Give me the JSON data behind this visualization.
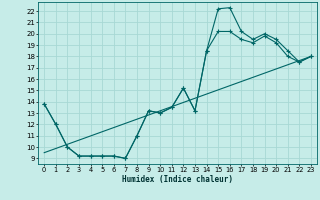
{
  "xlabel": "Humidex (Indice chaleur)",
  "background_color": "#c6ece8",
  "grid_color": "#a8d8d4",
  "line_color": "#006666",
  "xlim": [
    -0.5,
    23.5
  ],
  "ylim": [
    8.5,
    22.8
  ],
  "xticks": [
    0,
    1,
    2,
    3,
    4,
    5,
    6,
    7,
    8,
    9,
    10,
    11,
    12,
    13,
    14,
    15,
    16,
    17,
    18,
    19,
    20,
    21,
    22,
    23
  ],
  "yticks": [
    9,
    10,
    11,
    12,
    13,
    14,
    15,
    16,
    17,
    18,
    19,
    20,
    21,
    22
  ],
  "line1_x": [
    0,
    1,
    2,
    3,
    4,
    5,
    6,
    7,
    8,
    9,
    10,
    11,
    12,
    13,
    14,
    15,
    16,
    17,
    18,
    19,
    20,
    21,
    22,
    23
  ],
  "line1_y": [
    13.8,
    12.0,
    10.0,
    9.2,
    9.2,
    9.2,
    9.2,
    9.0,
    11.0,
    13.2,
    13.0,
    13.5,
    15.2,
    13.2,
    18.5,
    20.2,
    20.2,
    19.5,
    19.2,
    19.8,
    19.2,
    18.0,
    17.5,
    18.0
  ],
  "line2_x": [
    0,
    1,
    2,
    3,
    4,
    5,
    6,
    7,
    8,
    9,
    10,
    11,
    12,
    13,
    14,
    15,
    16,
    17,
    18,
    19,
    20,
    21,
    22,
    23
  ],
  "line2_y": [
    13.8,
    12.0,
    10.0,
    9.2,
    9.2,
    9.2,
    9.2,
    9.0,
    11.0,
    13.2,
    13.0,
    13.5,
    15.2,
    13.2,
    18.5,
    22.2,
    22.3,
    20.2,
    19.5,
    20.0,
    19.5,
    18.5,
    17.5,
    18.0
  ],
  "line3_x": [
    0,
    23
  ],
  "line3_y": [
    9.5,
    18.0
  ]
}
